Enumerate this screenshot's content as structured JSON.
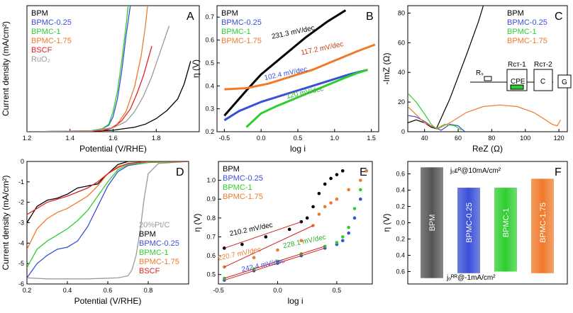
{
  "colors": {
    "BPM": "#000000",
    "BPMC-0.25": "#3a4fd8",
    "BPMC-1": "#2fce2f",
    "BPMC-1.75": "#f07a2a",
    "BSCF": "#e02020",
    "RuO2": "#9a9a9a",
    "20%Pt/C": "#9a9a9a"
  },
  "chart_data": [
    {
      "panel": "A",
      "type": "line",
      "xlabel": "Potential (V/RHE)",
      "ylabel": "Current density (mA/cm²)",
      "xlim": [
        1.2,
        2.0
      ],
      "ylim": [
        0,
        25
      ],
      "xticks": [
        "1.2",
        "1.4",
        "1.6",
        "1.8"
      ],
      "legend": [
        "BPM",
        "BPMC-0.25",
        "BPMC-1",
        "BPMC-1.75",
        "BSCF",
        "RuO₂"
      ],
      "series": [
        {
          "name": "BPM",
          "x": [
            1.2,
            1.5,
            1.6,
            1.7,
            1.75,
            1.8,
            1.85,
            1.9,
            1.93,
            1.96
          ],
          "y": [
            0,
            0.1,
            0.3,
            0.9,
            1.5,
            2.6,
            4.2,
            6.5,
            9.5,
            14
          ]
        },
        {
          "name": "BPMC-0.25",
          "x": [
            1.2,
            1.5,
            1.55,
            1.58,
            1.6,
            1.62,
            1.64,
            1.66,
            1.68
          ],
          "y": [
            0,
            0.2,
            0.6,
            1.3,
            3,
            6.5,
            12,
            19,
            25
          ]
        },
        {
          "name": "BPMC-1",
          "x": [
            1.2,
            1.5,
            1.55,
            1.58,
            1.6,
            1.62,
            1.64,
            1.66,
            1.67
          ],
          "y": [
            0,
            0.2,
            0.6,
            1.5,
            4,
            8,
            14,
            21,
            25
          ]
        },
        {
          "name": "BPMC-1.75",
          "x": [
            1.2,
            1.5,
            1.58,
            1.62,
            1.66,
            1.7,
            1.73,
            1.75,
            1.76
          ],
          "y": [
            0,
            0.1,
            0.5,
            1.5,
            4,
            9,
            15,
            21,
            25
          ]
        },
        {
          "name": "BSCF",
          "x": [
            1.2,
            1.55,
            1.6,
            1.64,
            1.68,
            1.71,
            1.74,
            1.76,
            1.78
          ],
          "y": [
            0,
            0.2,
            0.8,
            2.2,
            4.5,
            7.5,
            11,
            14,
            17
          ]
        },
        {
          "name": "RuO₂",
          "x": [
            1.2,
            1.5,
            1.6,
            1.66,
            1.7,
            1.74,
            1.78,
            1.82,
            1.86
          ],
          "y": [
            0,
            0.2,
            0.8,
            2,
            4,
            7,
            11,
            16,
            21
          ]
        }
      ]
    },
    {
      "panel": "B",
      "type": "line",
      "xlabel": "log i",
      "ylabel": "η (V)",
      "xlim": [
        -0.6,
        1.6
      ],
      "ylim": [
        0.2,
        0.75
      ],
      "xticks": [
        "-0.5",
        "0.0",
        "0.5",
        "1.0",
        "1.5"
      ],
      "yticks": [
        "0.2",
        "0.3",
        "0.4",
        "0.5",
        "0.6",
        "0.7"
      ],
      "legend": [
        "BPM",
        "BPMC-0.25",
        "BPMC-1",
        "BPMC-1.75"
      ],
      "annotations": [
        "231.3 mV/dec",
        "117.2 mV/dec",
        "102.4 mV/dec",
        "120 mV/dec"
      ],
      "series": [
        {
          "name": "BPM",
          "x": [
            -0.5,
            -0.2,
            0.0,
            0.3,
            0.6,
            0.9,
            1.15
          ],
          "y": [
            0.27,
            0.38,
            0.45,
            0.53,
            0.61,
            0.68,
            0.73
          ]
        },
        {
          "name": "BPMC-0.25",
          "x": [
            -0.5,
            -0.3,
            0.0,
            0.3,
            0.6,
            0.9,
            1.2,
            1.45
          ],
          "y": [
            0.25,
            0.29,
            0.33,
            0.36,
            0.39,
            0.42,
            0.45,
            0.47
          ]
        },
        {
          "name": "BPMC-1",
          "x": [
            -0.2,
            0.0,
            0.2,
            0.5,
            0.8,
            1.1,
            1.3,
            1.45
          ],
          "y": [
            0.22,
            0.28,
            0.31,
            0.35,
            0.39,
            0.43,
            0.455,
            0.47
          ]
        },
        {
          "name": "BPMC-1.75",
          "x": [
            -0.5,
            -0.2,
            0.1,
            0.4,
            0.7,
            1.0,
            1.3,
            1.55
          ],
          "y": [
            0.385,
            0.39,
            0.41,
            0.44,
            0.47,
            0.51,
            0.55,
            0.58
          ]
        }
      ]
    },
    {
      "panel": "C",
      "type": "line",
      "xlabel": "ReZ (Ω)",
      "ylabel": "-ImZ (Ω)",
      "xlim": [
        30,
        125
      ],
      "ylim": [
        0,
        85
      ],
      "xticks": [
        "40",
        "60",
        "80",
        "100",
        "120"
      ],
      "yticks": [
        "0",
        "20",
        "40",
        "60",
        "80"
      ],
      "legend": [
        "BPM",
        "BPMC-0.25",
        "BPMC-1",
        "BPMC-1.75"
      ],
      "circuit_labels": [
        "Rₛ",
        "Rᴄᴛ-1",
        "CPE",
        "Rᴄᴛ-2",
        "C",
        "G"
      ],
      "series": [
        {
          "name": "BPM",
          "x": [
            30,
            35,
            40,
            44,
            47,
            55,
            65,
            72,
            75
          ],
          "y": [
            6,
            8,
            6,
            3,
            2,
            22,
            52,
            74,
            85
          ]
        },
        {
          "name": "BPMC-0.25",
          "x": [
            30,
            35,
            40,
            45,
            50,
            55,
            60,
            64
          ],
          "y": [
            11,
            10,
            7,
            3,
            1,
            5,
            4,
            0
          ]
        },
        {
          "name": "BPMC-1",
          "x": [
            30,
            35,
            40,
            44,
            47,
            52,
            58,
            62
          ],
          "y": [
            26,
            20,
            12,
            5,
            2,
            5,
            4,
            1
          ]
        },
        {
          "name": "BPMC-1.75",
          "x": [
            30,
            40,
            48,
            55,
            65,
            75,
            85,
            95,
            105,
            112,
            116,
            119,
            121
          ],
          "y": [
            17,
            6,
            2,
            6,
            13,
            17,
            18,
            17,
            13,
            8,
            5,
            4,
            8
          ]
        }
      ]
    },
    {
      "panel": "D",
      "type": "line",
      "xlabel": "Potential (V/RHE)",
      "ylabel": "Current density (mA/cm²)",
      "xlim": [
        0.2,
        1.0
      ],
      "ylim": [
        -6,
        0
      ],
      "xticks": [
        "0.2",
        "0.4",
        "0.6",
        "0.8"
      ],
      "yticks": [
        "0",
        "-1",
        "-2",
        "-3",
        "-4",
        "-5",
        "-6"
      ],
      "legend": [
        "20%Pt/C",
        "BPM",
        "BPMC-0.25",
        "BPMC-1",
        "BPMC-1.75",
        "BSCF"
      ],
      "series": [
        {
          "name": "20%Pt/C",
          "x": [
            0.2,
            0.3,
            0.5,
            0.65,
            0.7,
            0.72,
            0.74,
            0.76,
            0.78,
            0.8,
            0.85,
            1.0
          ],
          "y": [
            -5.7,
            -5.75,
            -5.75,
            -5.7,
            -5.6,
            -5.3,
            -4.6,
            -3.4,
            -1.8,
            -0.6,
            -0.1,
            0
          ]
        },
        {
          "name": "BPM",
          "x": [
            0.2,
            0.25,
            0.3,
            0.35,
            0.4,
            0.45,
            0.5,
            0.55,
            0.6,
            0.65,
            0.7,
            0.75,
            1.0
          ],
          "y": [
            -3.0,
            -2.2,
            -1.9,
            -1.8,
            -1.6,
            -1.3,
            -1.2,
            -1.1,
            -0.6,
            -0.15,
            0,
            0,
            0
          ]
        },
        {
          "name": "BPMC-0.25",
          "x": [
            0.2,
            0.25,
            0.3,
            0.35,
            0.4,
            0.45,
            0.5,
            0.55,
            0.6,
            0.65,
            0.7,
            0.8,
            1.0
          ],
          "y": [
            -5.7,
            -5.0,
            -4.6,
            -4.3,
            -4.2,
            -3.9,
            -3.2,
            -2.2,
            -1.2,
            -0.5,
            -0.2,
            -0.05,
            0
          ]
        },
        {
          "name": "BPMC-1",
          "x": [
            0.2,
            0.25,
            0.3,
            0.35,
            0.4,
            0.45,
            0.5,
            0.55,
            0.6,
            0.65,
            0.7,
            0.8,
            1.0
          ],
          "y": [
            -5.2,
            -4.3,
            -3.9,
            -3.6,
            -3.3,
            -2.9,
            -2.4,
            -1.7,
            -1.0,
            -0.4,
            -0.15,
            -0.05,
            0
          ]
        },
        {
          "name": "BPMC-1.75",
          "x": [
            0.2,
            0.25,
            0.3,
            0.35,
            0.4,
            0.45,
            0.5,
            0.55,
            0.6,
            0.65,
            0.7,
            0.8,
            1.0
          ],
          "y": [
            -4.3,
            -3.3,
            -2.8,
            -2.5,
            -2.3,
            -2.0,
            -1.7,
            -1.2,
            -0.6,
            -0.25,
            -0.1,
            0,
            0
          ]
        },
        {
          "name": "BSCF",
          "x": [
            0.2,
            0.3,
            0.4,
            0.45,
            0.5,
            0.55,
            0.6,
            0.65,
            0.7,
            0.8,
            1.0
          ],
          "y": [
            -2.6,
            -2.0,
            -1.7,
            -1.5,
            -1.3,
            -1.0,
            -0.6,
            -0.3,
            -0.1,
            0,
            0
          ]
        }
      ]
    },
    {
      "panel": "E",
      "type": "scatter",
      "xlabel": "log i",
      "ylabel": "η (V)",
      "xlim": [
        -0.5,
        0.8
      ],
      "ylim": [
        0.45,
        1.1
      ],
      "xticks": [
        "-0.5",
        "0.0",
        "0.5"
      ],
      "yticks": [
        "0.5",
        "0.6",
        "0.7",
        "0.8",
        "0.9",
        "1.0"
      ],
      "legend": [
        "BPM",
        "BPMC-0.25",
        "BPMC-1",
        "BPMC-1.75"
      ],
      "annotations": [
        "210.2 mV/dec",
        "220.7 mV/dec",
        "228.1 mV/dec",
        "242.4 mV/dec"
      ],
      "series": [
        {
          "name": "BPM",
          "x": [
            -0.45,
            -0.3,
            -0.1,
            0.1,
            0.2,
            0.25,
            0.3,
            0.35,
            0.4,
            0.45,
            0.5,
            0.55
          ],
          "y": [
            0.64,
            0.66,
            0.7,
            0.74,
            0.78,
            0.8,
            0.86,
            0.93,
            0.98,
            1.01,
            1.03,
            1.05
          ]
        },
        {
          "name": "BPMC-0.25",
          "x": [
            -0.45,
            -0.2,
            0.0,
            0.2,
            0.4,
            0.5,
            0.55,
            0.6,
            0.65,
            0.7,
            0.75
          ],
          "y": [
            0.47,
            0.52,
            0.56,
            0.6,
            0.64,
            0.66,
            0.68,
            0.72,
            0.8,
            0.9,
            1.05
          ]
        },
        {
          "name": "BPMC-1",
          "x": [
            -0.45,
            -0.2,
            0.0,
            0.2,
            0.4,
            0.5,
            0.55,
            0.6,
            0.65,
            0.7,
            0.75
          ],
          "y": [
            0.48,
            0.53,
            0.57,
            0.61,
            0.65,
            0.67,
            0.7,
            0.75,
            0.85,
            0.95,
            1.05
          ]
        },
        {
          "name": "BPMC-1.75",
          "x": [
            -0.45,
            -0.2,
            0.0,
            0.2,
            0.3,
            0.35,
            0.4,
            0.45,
            0.5,
            0.6,
            0.7,
            0.75
          ],
          "y": [
            0.54,
            0.59,
            0.63,
            0.68,
            0.76,
            0.82,
            0.86,
            0.88,
            0.9,
            0.95,
            1.0,
            1.05
          ]
        }
      ]
    },
    {
      "panel": "F",
      "type": "bar",
      "ylabel": "η (V)",
      "yticks": [
        "0.6",
        "0.4",
        "0.2",
        "0.0",
        "0.2",
        "0.4",
        "0.6"
      ],
      "top_label": "jₒᴇᴿ@10mA/cm²",
      "bottom_label": "jₒᴿᴿ@-1mA/cm²",
      "categories": [
        "BPM",
        "BPMC-0.25",
        "BPMC-1",
        "BPMC-1.75"
      ],
      "oer_values": [
        0.68,
        0.43,
        0.43,
        0.54
      ],
      "orr_values": [
        0.68,
        0.62,
        0.6,
        0.62
      ]
    }
  ],
  "panels": {
    "A": {
      "letter": "A",
      "xlabel": "Potential (V/RHE)",
      "ylabel": "Current density (mA/cm²)"
    },
    "B": {
      "letter": "B",
      "xlabel": "log i",
      "ylabel": "η (V)"
    },
    "C": {
      "letter": "C",
      "xlabel": "ReZ (Ω)",
      "ylabel": "-ImZ (Ω)"
    },
    "D": {
      "letter": "D",
      "xlabel": "Potential (V/RHE)",
      "ylabel": "Current density (mA/cm²)"
    },
    "E": {
      "letter": "E",
      "xlabel": "log i",
      "ylabel": "η (V)"
    },
    "F": {
      "letter": "F",
      "ylabel": "η (V)"
    }
  }
}
